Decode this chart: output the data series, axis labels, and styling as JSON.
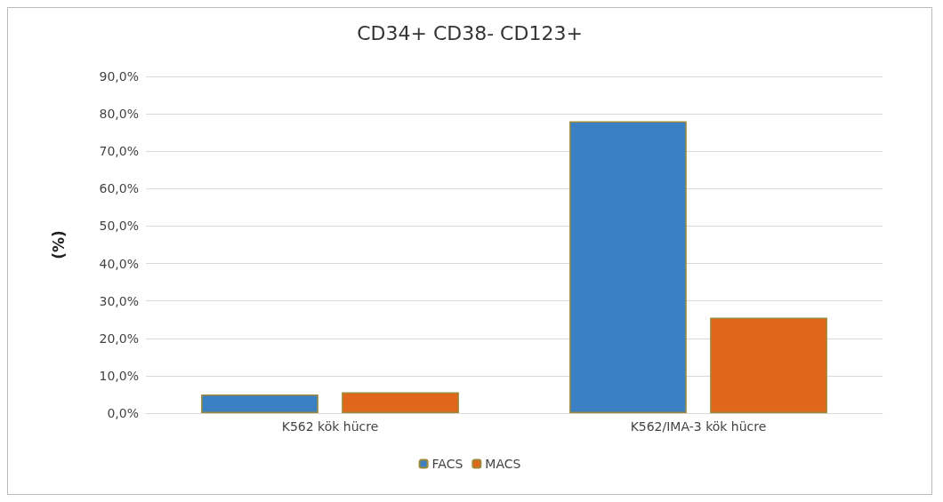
{
  "chart_data": {
    "type": "bar",
    "title": "CD34+ CD38- CD123+",
    "ylabel": "(%)",
    "categories": [
      "K562 kök hücre",
      "K562/IMA-3 kök hücre"
    ],
    "series": [
      {
        "name": "FACS",
        "color": "#3b80c3",
        "values": [
          5.0,
          78.0
        ]
      },
      {
        "name": "MACS",
        "color": "#e0661c",
        "values": [
          5.6,
          25.5
        ]
      }
    ],
    "ylim": [
      0,
      90
    ],
    "yticks": [
      {
        "value": 0,
        "label": "0,0%"
      },
      {
        "value": 10,
        "label": "10,0%"
      },
      {
        "value": 20,
        "label": "20,0%"
      },
      {
        "value": 30,
        "label": "30,0%"
      },
      {
        "value": 40,
        "label": "40,0%"
      },
      {
        "value": 50,
        "label": "50,0%"
      },
      {
        "value": 60,
        "label": "60,0%"
      },
      {
        "value": 70,
        "label": "70,0%"
      },
      {
        "value": 80,
        "label": "80,0%"
      },
      {
        "value": 90,
        "label": "90,0%"
      }
    ],
    "grid": "y",
    "legend": "bottom"
  }
}
